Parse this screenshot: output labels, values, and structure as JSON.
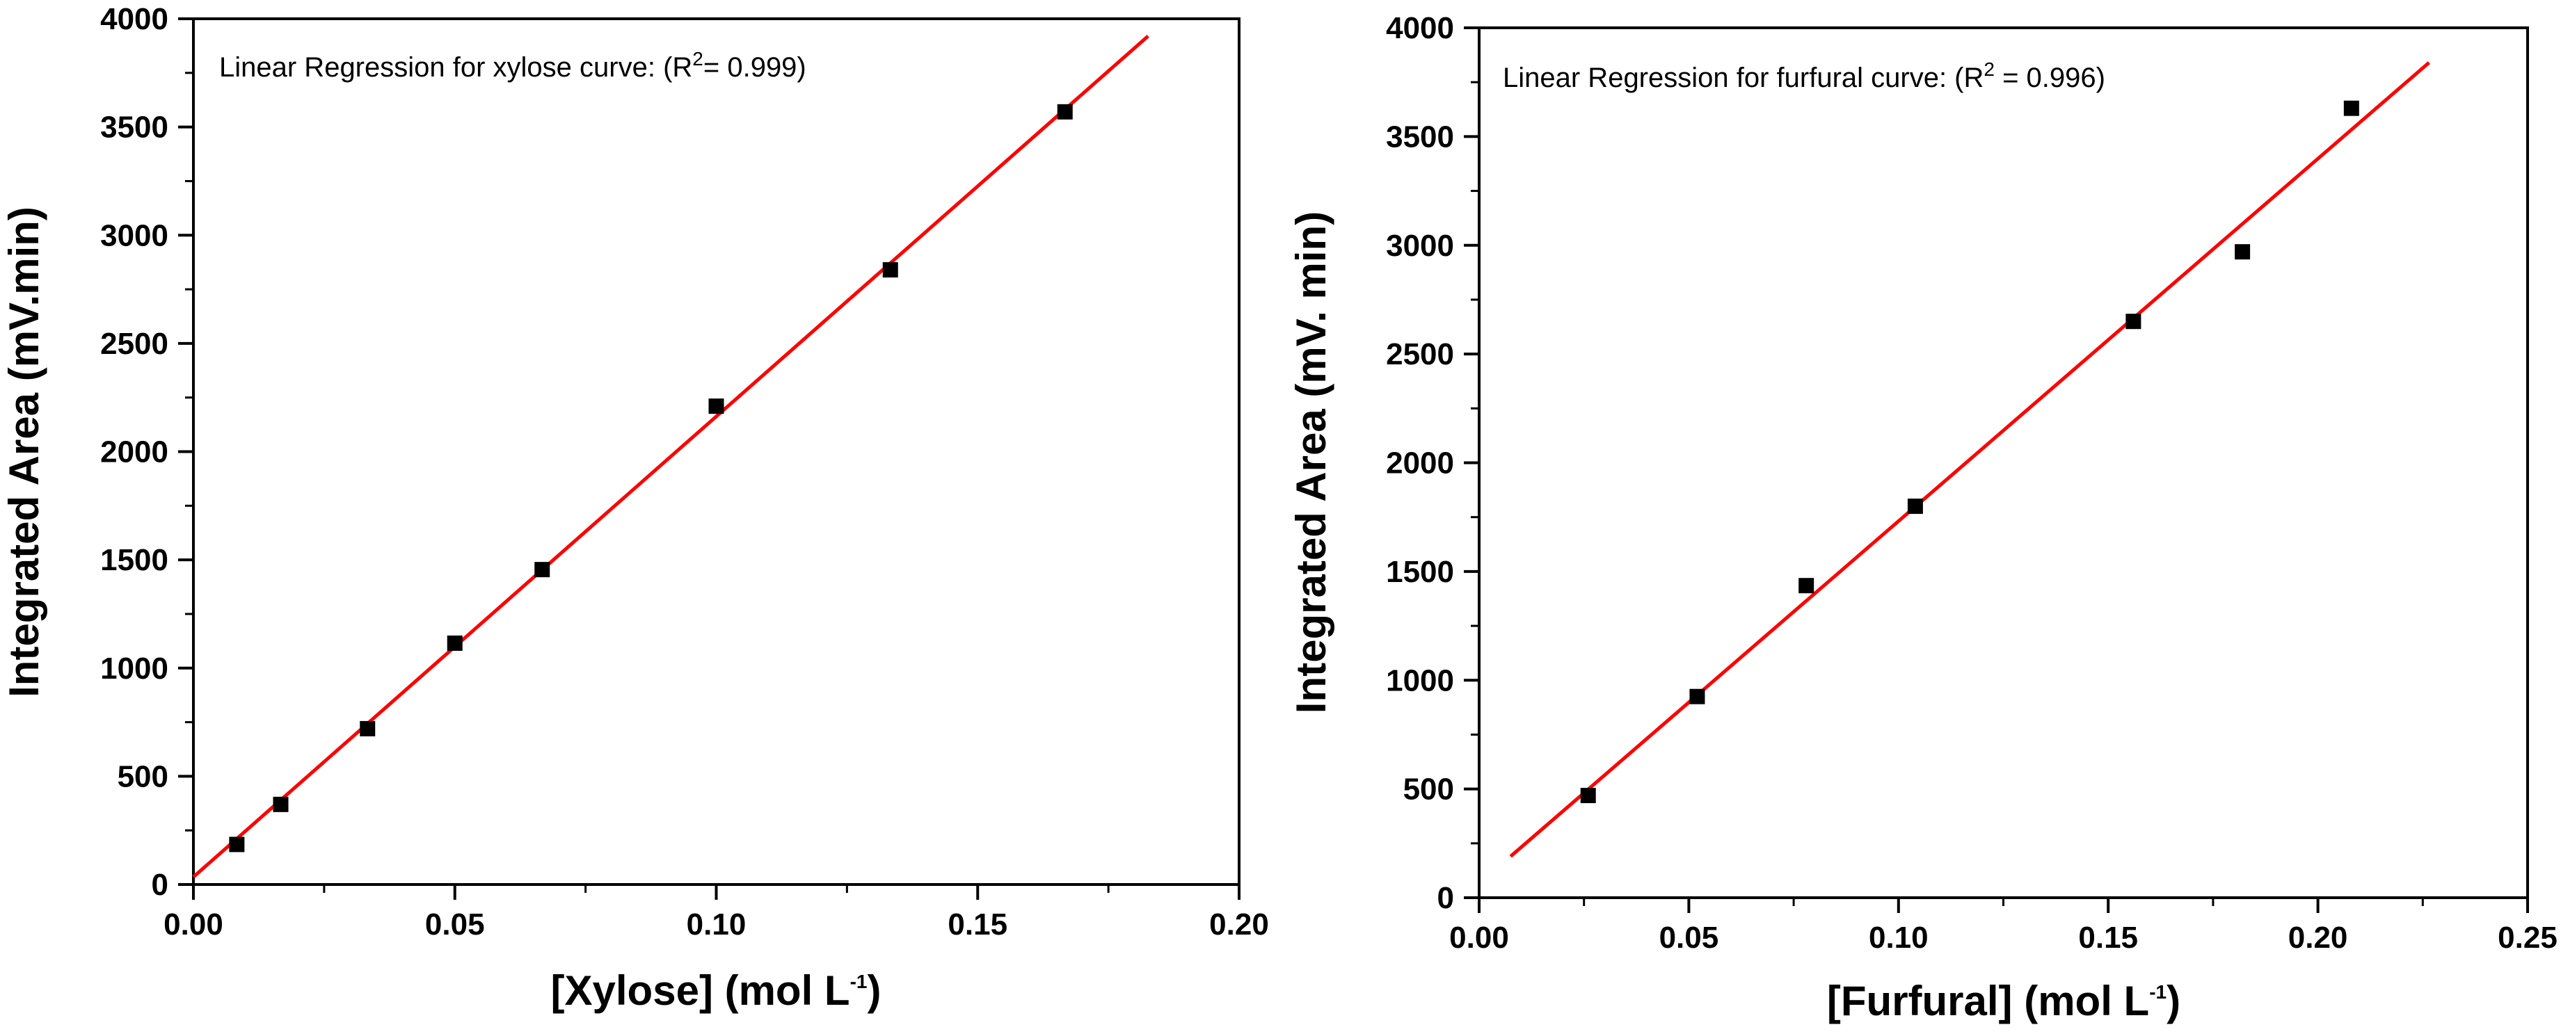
{
  "colors": {
    "fit_line": "#ff0000",
    "points": "#000000",
    "axes": "#000000"
  },
  "chart_data": [
    {
      "type": "scatter",
      "title": "",
      "annotation": {
        "text": "Linear Regression for xylose curve: (R",
        "sup": "2",
        "tail": "= 0.999)"
      },
      "xlabel": {
        "text": "[Xylose] (mol L",
        "sup": "-1",
        "tail": ")"
      },
      "ylabel": "Integrated Area (mV.min)",
      "xlim": [
        0.0,
        0.2
      ],
      "ylim": [
        0,
        4000
      ],
      "xticks": [
        0.0,
        0.05,
        0.1,
        0.15,
        0.2
      ],
      "xtick_labels": [
        "0.00",
        "0.05",
        "0.10",
        "0.15",
        "0.20"
      ],
      "yticks": [
        0,
        500,
        1000,
        1500,
        2000,
        2500,
        3000,
        3500,
        4000
      ],
      "ytick_labels": [
        "0",
        "500",
        "1000",
        "1500",
        "2000",
        "2500",
        "3000",
        "3500",
        "4000"
      ],
      "series": [
        {
          "name": "data",
          "x": [
            0.0083,
            0.0167,
            0.0333,
            0.05,
            0.0667,
            0.1,
            0.1333,
            0.1667
          ],
          "y": [
            185,
            370,
            720,
            1115,
            1455,
            2210,
            2840,
            3570
          ]
        },
        {
          "name": "linear fit",
          "x": [
            0.0,
            0.1826
          ],
          "y": [
            35,
            3920
          ]
        }
      ]
    },
    {
      "type": "scatter",
      "title": "",
      "annotation": {
        "text": "Linear Regression for furfural curve: (R",
        "sup": "2",
        "tail": " = 0.996)"
      },
      "xlabel": {
        "text": "[Furfural] (mol L",
        "sup": "-1",
        "tail": ")"
      },
      "ylabel": "Integrated Area (mV. min)",
      "xlim": [
        0.0,
        0.25
      ],
      "ylim": [
        0,
        4000
      ],
      "xticks": [
        0.0,
        0.05,
        0.1,
        0.15,
        0.2,
        0.25
      ],
      "xtick_labels": [
        "0.00",
        "0.05",
        "0.10",
        "0.15",
        "0.20",
        "0.25"
      ],
      "yticks": [
        0,
        500,
        1000,
        1500,
        2000,
        2500,
        3000,
        3500,
        4000
      ],
      "ytick_labels": [
        "0",
        "500",
        "1000",
        "1500",
        "2000",
        "2500",
        "3000",
        "3500",
        "4000"
      ],
      "series": [
        {
          "name": "data",
          "x": [
            0.026,
            0.052,
            0.078,
            0.104,
            0.156,
            0.182,
            0.208
          ],
          "y": [
            470,
            925,
            1435,
            1800,
            2650,
            2970,
            3630
          ]
        },
        {
          "name": "linear fit",
          "x": [
            0.0075,
            0.2265
          ],
          "y": [
            190,
            3840
          ]
        }
      ]
    }
  ]
}
